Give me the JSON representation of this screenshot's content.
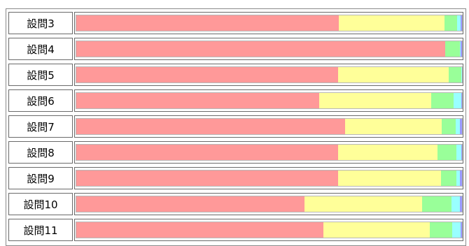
{
  "chart_data": {
    "type": "bar",
    "orientation": "horizontal",
    "stacked": "100%",
    "categories": [
      "設問3",
      "設問4",
      "設問5",
      "設問6",
      "設問7",
      "設問8",
      "設問9",
      "設問10",
      "設問11"
    ],
    "series": [
      {
        "color": "#ff9999",
        "values": [
          68.1,
          95.7,
          67.8,
          62.9,
          69.7,
          67.8,
          67.8,
          59.1,
          64.0
        ]
      },
      {
        "color": "#ffff99",
        "values": [
          27.4,
          0.0,
          28.7,
          29.1,
          25.1,
          25.8,
          26.7,
          30.5,
          27.7
        ]
      },
      {
        "color": "#99ff99",
        "values": [
          3.2,
          3.8,
          3.3,
          5.9,
          3.6,
          5.0,
          4.0,
          7.6,
          5.8
        ]
      },
      {
        "color": "#99ffff",
        "values": [
          0.9,
          0.2,
          0.5,
          2.0,
          1.1,
          1.3,
          1.0,
          2.2,
          2.2
        ]
      },
      {
        "color": "#9999ff",
        "values": [
          0.4,
          0.3,
          0.7,
          1.3,
          0.5,
          1.3,
          1.3,
          1.8,
          1.8
        ]
      },
      {
        "color": "#ff9966",
        "values": [
          0.0,
          0.5,
          0.0,
          0.0,
          0.0,
          0.0,
          0.0,
          0.0,
          0.0
        ]
      }
    ]
  }
}
